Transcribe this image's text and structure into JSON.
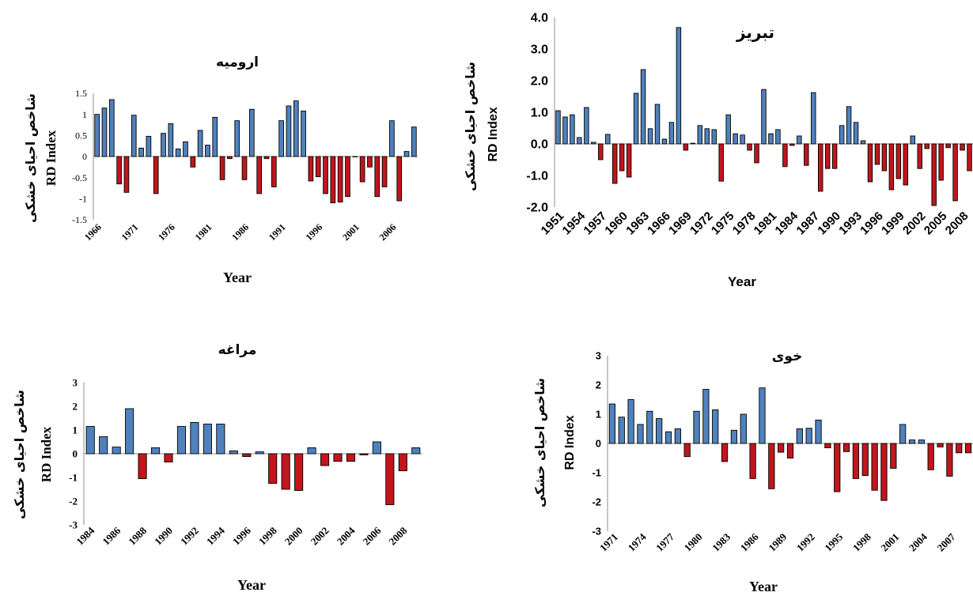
{
  "colors": {
    "positive": "#4f81bd",
    "negative": "#c0161c",
    "stroke": "#000000",
    "axis": "#8c8c8c"
  },
  "chart_data": [
    {
      "id": "urmia",
      "type": "bar",
      "title": "ارومیه",
      "xlabel": "Year",
      "ylabel": "RD Index",
      "ylabel_fa": "شاخص احیای خشکی",
      "ylim": [
        -1.5,
        1.5
      ],
      "yticks": [
        "1.5",
        "1",
        "0.5",
        "0",
        "-0.5",
        "-1",
        "-1.5"
      ],
      "x_start": 1966,
      "tick_labels": [
        "1966",
        "1971",
        "1976",
        "1981",
        "1986",
        "1991",
        "1996",
        "2001",
        "2006"
      ],
      "values": [
        1.0,
        1.15,
        1.35,
        -0.65,
        -0.85,
        0.98,
        0.2,
        0.48,
        -0.88,
        0.55,
        0.78,
        0.18,
        0.35,
        -0.25,
        0.62,
        0.27,
        0.93,
        -0.55,
        -0.05,
        0.85,
        -0.55,
        1.12,
        -0.88,
        -0.05,
        -0.72,
        0.85,
        1.2,
        1.32,
        1.08,
        -0.58,
        -0.48,
        -0.88,
        -1.1,
        -1.08,
        -0.95,
        0.0,
        -0.6,
        -0.25,
        -0.95,
        -0.72,
        0.85,
        -1.05,
        0.12,
        0.7
      ],
      "grid": false,
      "legend": "none"
    },
    {
      "id": "tabriz",
      "type": "bar",
      "title": "تبریز",
      "xlabel": "Year",
      "ylabel": "RD Index",
      "ylabel_fa": "شاخص احیای خشکی",
      "ylim": [
        -2.0,
        4.0
      ],
      "yticks": [
        "4.0",
        "3.0",
        "2.0",
        "1.0",
        "0.0",
        "-1.0",
        "-2.0"
      ],
      "x_start": 1951,
      "tick_labels": [
        "1951",
        "1954",
        "1957",
        "1960",
        "1963",
        "1966",
        "1969",
        "1972",
        "1975",
        "1978",
        "1981",
        "1984",
        "1987",
        "1990",
        "1993",
        "1996",
        "1999",
        "2002",
        "2005",
        "2008"
      ],
      "values": [
        1.05,
        0.85,
        0.92,
        0.2,
        1.15,
        0.05,
        -0.5,
        0.3,
        -1.25,
        -0.85,
        -1.05,
        1.6,
        2.35,
        0.48,
        1.25,
        0.15,
        0.68,
        3.68,
        -0.2,
        0.02,
        0.58,
        0.48,
        0.45,
        -1.18,
        0.92,
        0.32,
        0.28,
        -0.2,
        -0.6,
        1.72,
        0.32,
        0.45,
        -0.72,
        -0.05,
        0.25,
        -0.68,
        1.62,
        -1.5,
        -0.78,
        -0.78,
        0.58,
        1.18,
        0.68,
        0.1,
        -1.2,
        -0.65,
        -0.85,
        -1.45,
        -1.1,
        -1.3,
        0.25,
        -0.78,
        -0.15,
        -1.95,
        -1.15,
        -0.12,
        -1.8,
        -0.2,
        -0.85
      ],
      "grid": false,
      "legend": "none"
    },
    {
      "id": "maragheh",
      "type": "bar",
      "title": "مراغه",
      "xlabel": "Year",
      "ylabel": "RD Index",
      "ylabel_fa": "شاخص احیای خشکی",
      "ylim": [
        -3,
        3
      ],
      "yticks": [
        "3",
        "2",
        "1",
        "0",
        "-1",
        "-2",
        "-3"
      ],
      "x_start": 1984,
      "tick_labels": [
        "1984",
        "1986",
        "1988",
        "1990",
        "1992",
        "1994",
        "1996",
        "1998",
        "2000",
        "2002",
        "2004",
        "2006",
        "2008"
      ],
      "values": [
        1.15,
        0.72,
        0.28,
        1.9,
        -1.05,
        0.25,
        -0.35,
        1.15,
        1.32,
        1.25,
        1.25,
        0.12,
        -0.12,
        0.08,
        -1.25,
        -1.5,
        -1.55,
        0.25,
        -0.5,
        -0.32,
        -0.32,
        -0.05,
        0.5,
        -2.15,
        -0.72,
        0.25
      ],
      "grid": false,
      "legend": "none"
    },
    {
      "id": "khoy",
      "type": "bar",
      "title": "خوی",
      "xlabel": "Year",
      "ylabel": "RD Index",
      "ylabel_fa": "شاخص احیای خشکی",
      "ylim": [
        -3,
        3
      ],
      "yticks": [
        "3",
        "2",
        "1",
        "0",
        "-1",
        "-2",
        "-3"
      ],
      "x_start": 1971,
      "tick_labels": [
        "1971",
        "1974",
        "1977",
        "1980",
        "1983",
        "1986",
        "1989",
        "1992",
        "1995",
        "1998",
        "2001",
        "2004",
        "2007"
      ],
      "values": [
        1.35,
        0.9,
        1.5,
        0.65,
        1.1,
        0.85,
        0.4,
        0.5,
        -0.45,
        1.1,
        1.85,
        1.15,
        -0.62,
        0.45,
        1.0,
        -1.2,
        1.9,
        -1.55,
        -0.3,
        -0.5,
        0.5,
        0.52,
        0.8,
        -0.15,
        -1.65,
        -0.28,
        -1.2,
        -1.1,
        -1.6,
        -1.95,
        -0.85,
        0.65,
        0.12,
        0.12,
        -0.9,
        -0.12,
        -1.12,
        -0.32,
        -0.32
      ],
      "grid": false,
      "legend": "none"
    }
  ]
}
